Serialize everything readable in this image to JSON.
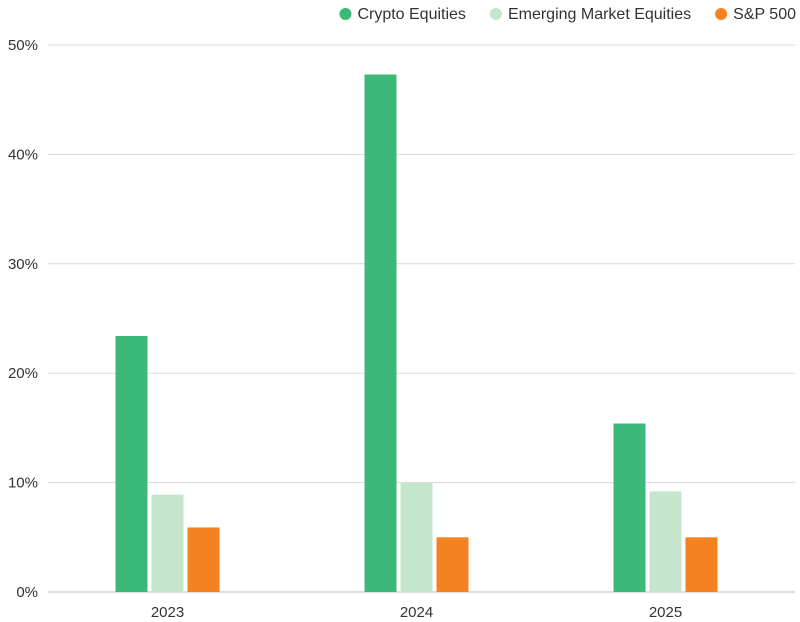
{
  "chart_data": {
    "type": "bar",
    "categories": [
      "2023",
      "2024",
      "2025"
    ],
    "series": [
      {
        "name": "Crypto Equities",
        "values": [
          23.4,
          47.3,
          15.4
        ],
        "color": "#3cb878"
      },
      {
        "name": "Emerging Market Equities",
        "values": [
          8.9,
          10.0,
          9.2
        ],
        "color": "#c5e6cd"
      },
      {
        "name": "S&P 500",
        "values": [
          5.9,
          5.0,
          5.0
        ],
        "color": "#f58220"
      }
    ],
    "ylim": [
      0,
      50
    ],
    "yticks": [
      0,
      10,
      20,
      30,
      40,
      50
    ],
    "ytick_labels": [
      "0%",
      "10%",
      "20%",
      "30%",
      "40%",
      "50%"
    ],
    "grid": true,
    "legend_position": "top-right",
    "title": "",
    "xlabel": "",
    "ylabel": ""
  }
}
